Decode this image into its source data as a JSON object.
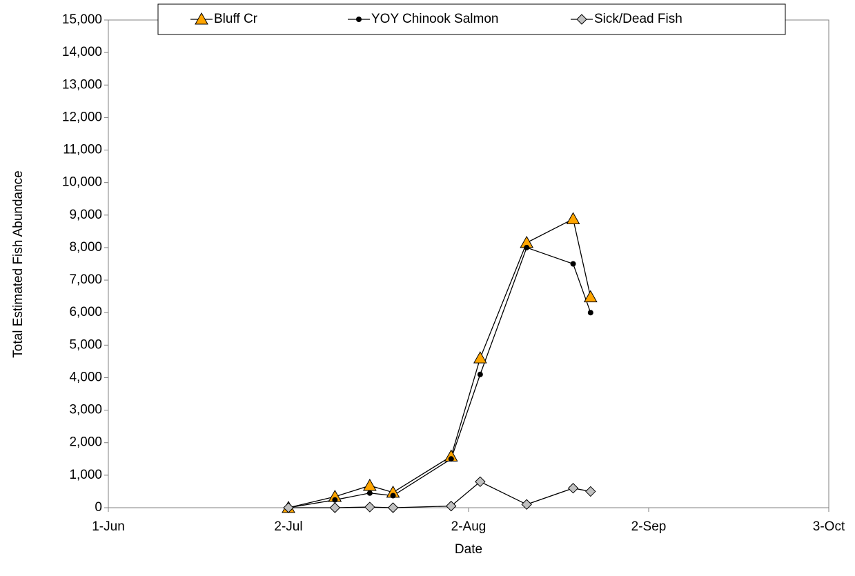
{
  "chart_data": {
    "type": "line",
    "x_label": "Date",
    "y_label": "Total Estimated Fish Abundance",
    "x": [
      "2-Jul",
      "10-Jul",
      "16-Jul",
      "20-Jul",
      "30-Jul",
      "4-Aug",
      "12-Aug",
      "20-Aug",
      "23-Aug"
    ],
    "series": [
      {
        "name": "Bluff Cr",
        "color": "#FFA500",
        "marker": "triangle",
        "values": [
          0,
          340,
          680,
          470,
          1580,
          4600,
          8150,
          8880,
          6480
        ]
      },
      {
        "name": "YOY Chinook Salmon",
        "color": "#000000",
        "marker": "circle",
        "values": [
          0,
          240,
          450,
          370,
          1500,
          4100,
          8000,
          7500,
          6000
        ]
      },
      {
        "name": "Sick/Dead Fish",
        "color": "#C0C0C0",
        "marker": "diamond",
        "values": [
          0,
          0,
          20,
          0,
          50,
          800,
          100,
          600,
          500
        ]
      }
    ],
    "line_color": "#000000",
    "xlim": [
      "1-Jun",
      "3-Oct"
    ],
    "xticks": [
      "1-Jun",
      "2-Jul",
      "2-Aug",
      "2-Sep",
      "3-Oct"
    ],
    "ylim": [
      0,
      15000
    ],
    "yticks": [
      0,
      {
        "value": 1000,
        "label": "1,000"
      },
      {
        "value": 2000,
        "label": "2,000"
      },
      {
        "value": 3000,
        "label": "3,000"
      },
      {
        "value": 4000,
        "label": "4,000"
      },
      {
        "value": 5000,
        "label": "5,000"
      },
      {
        "value": 6000,
        "label": "6,000"
      },
      {
        "value": 7000,
        "label": "7,000"
      },
      {
        "value": 8000,
        "label": "8,000"
      },
      {
        "value": 9000,
        "label": "9,000"
      },
      {
        "value": 10000,
        "label": "10,000"
      },
      {
        "value": 11000,
        "label": "11,000"
      },
      {
        "value": 12000,
        "label": "12,000"
      },
      {
        "value": 13000,
        "label": "13,000"
      },
      {
        "value": 14000,
        "label": "14,000"
      },
      {
        "value": 15000,
        "label": "15,000"
      }
    ],
    "grid": false,
    "legend": "top"
  }
}
